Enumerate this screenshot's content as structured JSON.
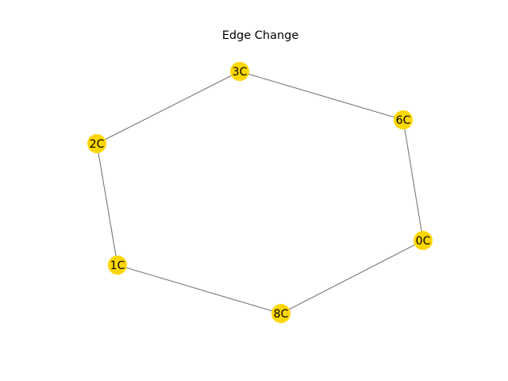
{
  "graph": {
    "title": "Edge Change",
    "colors": {
      "node_fill": "#FFD700",
      "edge": "#777777",
      "label": "#000000"
    },
    "nodes": [
      {
        "id": "3C",
        "label": "3C"
      },
      {
        "id": "6C",
        "label": "6C"
      },
      {
        "id": "2C",
        "label": "2C"
      },
      {
        "id": "0C",
        "label": "0C"
      },
      {
        "id": "1C",
        "label": "1C"
      },
      {
        "id": "8C",
        "label": "8C"
      }
    ],
    "edges": [
      {
        "source": "3C",
        "target": "6C"
      },
      {
        "source": "3C",
        "target": "2C"
      },
      {
        "source": "6C",
        "target": "0C"
      },
      {
        "source": "2C",
        "target": "1C"
      },
      {
        "source": "1C",
        "target": "8C"
      },
      {
        "source": "8C",
        "target": "0C"
      }
    ]
  }
}
